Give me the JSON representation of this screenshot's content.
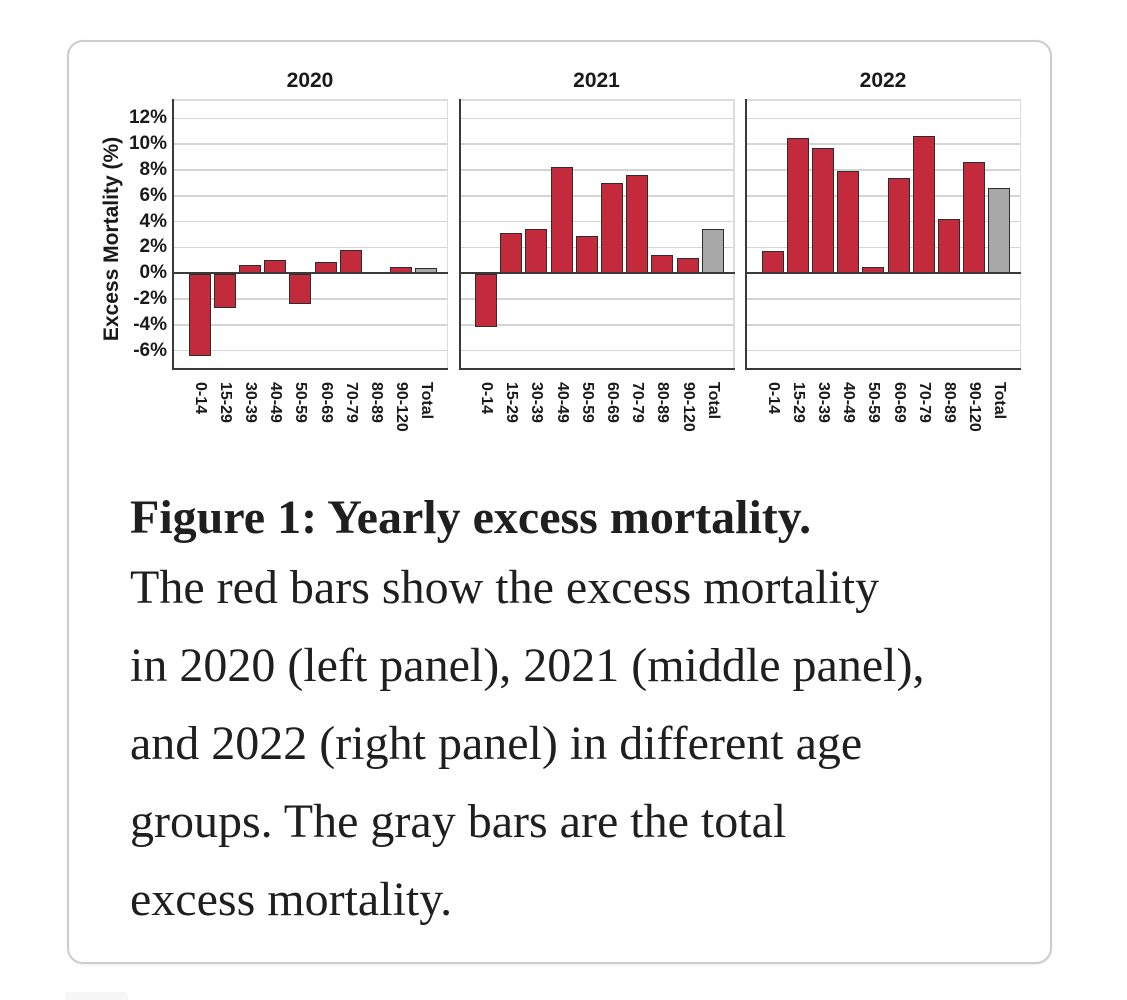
{
  "figure": {
    "y_axis": {
      "title": "Excess Mortality (%)",
      "ticks": [
        {
          "label": "12%",
          "value": 12
        },
        {
          "label": "10%",
          "value": 10
        },
        {
          "label": "8%",
          "value": 8
        },
        {
          "label": "6%",
          "value": 6
        },
        {
          "label": "4%",
          "value": 4
        },
        {
          "label": "2%",
          "value": 2
        },
        {
          "label": "0%",
          "value": 0
        },
        {
          "label": "-2%",
          "value": -2
        },
        {
          "label": "-4%",
          "value": -4
        },
        {
          "label": "-6%",
          "value": -6
        }
      ]
    },
    "colors": {
      "bar_red": "#c32b3c",
      "bar_gray": "#a8a8a8",
      "bar_border": "#2d2d2d",
      "gridline": "#d4d4d4",
      "axis": "#3a3a3a",
      "text": "#1a1a1a"
    }
  },
  "chart_data": [
    {
      "type": "bar",
      "title": "2020",
      "categories": [
        "0-14",
        "15-29",
        "30-39",
        "40-49",
        "50-59",
        "60-69",
        "70-79",
        "80-89",
        "90-120",
        "Total"
      ],
      "values": [
        -6.3,
        -2.6,
        0.6,
        1.0,
        -2.3,
        0.9,
        1.8,
        0.0,
        0.5,
        0.4
      ],
      "ylabel": "Excess Mortality (%)",
      "ylim": [
        -7.5,
        13.5
      ],
      "grid": true,
      "legend": "none",
      "note": "red bars = age groups, gray bar = Total"
    },
    {
      "type": "bar",
      "title": "2021",
      "categories": [
        "0-14",
        "15-29",
        "30-39",
        "40-49",
        "50-59",
        "60-69",
        "70-79",
        "80-89",
        "90-120",
        "Total"
      ],
      "values": [
        -4.1,
        3.1,
        3.4,
        8.2,
        2.9,
        7.0,
        7.6,
        1.4,
        1.2,
        3.4
      ],
      "ylabel": "Excess Mortality (%)",
      "ylim": [
        -7.5,
        13.5
      ],
      "grid": true,
      "legend": "none",
      "note": "red bars = age groups, gray bar = Total"
    },
    {
      "type": "bar",
      "title": "2022",
      "categories": [
        "0-14",
        "15-29",
        "30-39",
        "40-49",
        "50-59",
        "60-69",
        "70-79",
        "80-89",
        "90-120",
        "Total"
      ],
      "values": [
        1.7,
        10.5,
        9.7,
        7.9,
        0.5,
        7.4,
        10.6,
        4.2,
        8.6,
        6.6
      ],
      "ylabel": "Excess Mortality (%)",
      "ylim": [
        -7.5,
        13.5
      ],
      "grid": true,
      "legend": "none",
      "note": "red bars = age groups, gray bar = Total"
    }
  ],
  "caption": {
    "lines": [
      "Figure 1: Yearly excess mortality.",
      "The red bars show the excess mortality",
      "in 2020 (left panel), 2021 (middle panel),",
      "and 2022 (right panel) in different age",
      "groups. The gray bars are the total",
      "excess mortality."
    ]
  }
}
